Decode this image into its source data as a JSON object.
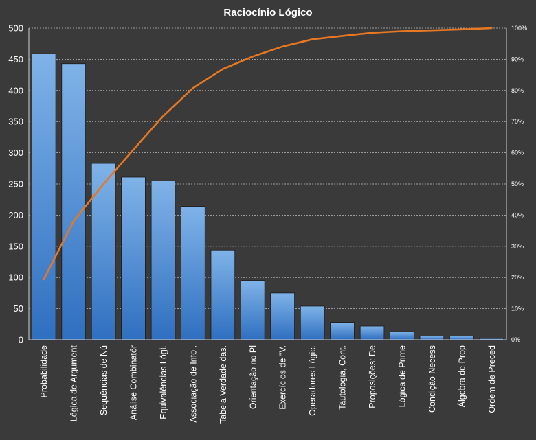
{
  "chart_data": {
    "type": "bar",
    "title": "Raciocínio Lógico",
    "categories": [
      "Probabilidade",
      "Lógica de Argument",
      "Sequências de Nú",
      "Análise Combinatór",
      "Equivalências Lógi.",
      "Associação de Info .",
      "Tabela Verdade das.",
      "Orientação no Pl",
      "Exercícios de \"V.",
      "Operadores Lógic.",
      "Tautologia, Cont.",
      "Proposições: De",
      "Lógica de Prime",
      "Condição Necess",
      "Álgebra de Prop",
      "Ordem de Preced"
    ],
    "series": [
      {
        "type": "bar",
        "values": [
          459,
          443,
          283,
          261,
          255,
          214,
          144,
          95,
          75,
          54,
          28,
          22,
          13,
          6,
          6,
          2
        ]
      },
      {
        "type": "line",
        "axis": "secondary",
        "values": [
          19.4,
          38.1,
          50.0,
          61.0,
          71.8,
          80.8,
          86.9,
          90.9,
          94.1,
          96.4,
          97.5,
          98.5,
          99.0,
          99.3,
          99.6,
          100.0
        ]
      }
    ],
    "ylim": [
      0,
      500
    ],
    "yticks": [
      0,
      50,
      100,
      150,
      200,
      250,
      300,
      350,
      400,
      450,
      500
    ],
    "y2lim": [
      0,
      100
    ],
    "y2ticks": [
      "0%",
      "10%",
      "20%",
      "30%",
      "40%",
      "50%",
      "60%",
      "70%",
      "80%",
      "90%",
      "100%"
    ],
    "grid": true,
    "colors": {
      "background": "#3a3a3a",
      "bar_top": "#7fb3e8",
      "bar_bottom": "#2f6fc0",
      "bar_stroke": "#1a1a1a",
      "line": "#e87722",
      "text": "#ffffff",
      "grid": "#bdbdbd"
    }
  }
}
